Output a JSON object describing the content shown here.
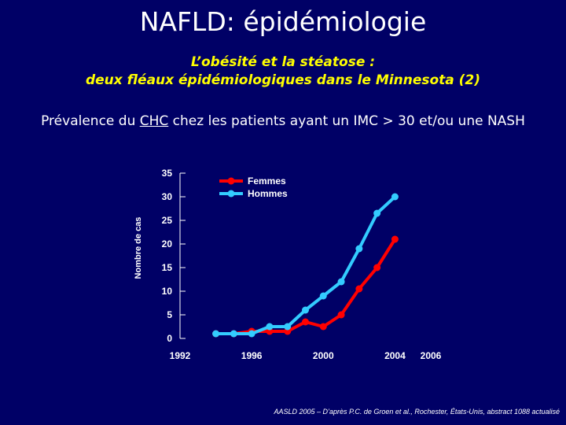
{
  "slide": {
    "title": "NAFLD: épidémiologie",
    "subtitle_line1": "L’obésité et la stéatose :",
    "subtitle_line2": "deux fléaux épidémiologiques dans le Minnesota (2)",
    "caption_before": "Prévalence du ",
    "caption_underlined": "CHC",
    "caption_after": " chez les patients ayant un IMC > 30 et/ou une NASH",
    "source": "AASLD 2005 – D’après P.C. de Groen et al., Rochester, États-Unis, abstract 1088 actualisé"
  },
  "colors": {
    "background": "#000066",
    "femmes": "#ff0000",
    "hommes": "#33ccff",
    "axis_text": "#ffffff"
  },
  "chart_data": {
    "type": "line",
    "ylabel": "Nombre de cas",
    "xlabel": "",
    "ylim": [
      0,
      35
    ],
    "xlim": [
      1992,
      2006
    ],
    "y_ticks": [
      0,
      5,
      10,
      15,
      20,
      25,
      30,
      35
    ],
    "x_ticks": [
      1992,
      1996,
      2000,
      2004,
      2006
    ],
    "legend_position": "top-right",
    "x": [
      1994,
      1995,
      1996,
      1997,
      1998,
      1999,
      2000,
      2001,
      2002,
      2003,
      2004
    ],
    "series": [
      {
        "name": "Femmes",
        "color": "#ff0000",
        "values": [
          1,
          1,
          1.5,
          1.5,
          1.5,
          3.5,
          2.5,
          5,
          10.5,
          15,
          21
        ]
      },
      {
        "name": "Hommes",
        "color": "#33ccff",
        "values": [
          1,
          1,
          1,
          2.5,
          2.5,
          6,
          9,
          12,
          19,
          26.5,
          30
        ]
      }
    ]
  }
}
